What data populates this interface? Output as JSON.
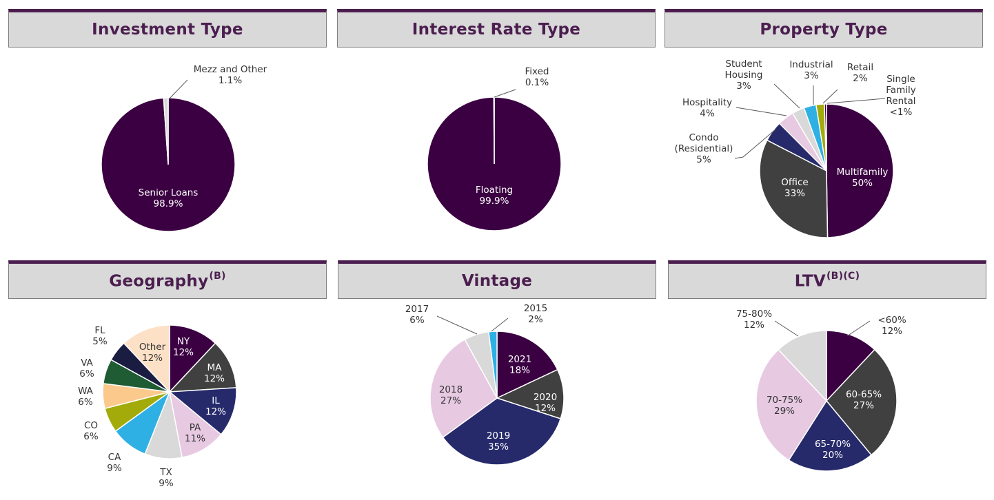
{
  "chart_data": [
    {
      "type": "pie",
      "title": "Investment Type",
      "categories": [
        "Senior Loans",
        "Mezz and Other"
      ],
      "values": [
        98.9,
        1.1
      ],
      "value_labels": [
        "98.9%",
        "1.1%"
      ],
      "colors": [
        "#3b0042",
        "#d9d9d9"
      ]
    },
    {
      "type": "pie",
      "title": "Interest Rate Type",
      "categories": [
        "Floating",
        "Fixed"
      ],
      "values": [
        99.9,
        0.1
      ],
      "value_labels": [
        "99.9%",
        "0.1%"
      ],
      "colors": [
        "#3b0042",
        "#d9d9d9"
      ]
    },
    {
      "type": "pie",
      "title": "Property Type",
      "categories": [
        "Multifamily",
        "Office",
        "Condo (Residential)",
        "Hospitality",
        "Student Housing",
        "Industrial",
        "Retail",
        "Single Family Rental"
      ],
      "values": [
        50,
        33,
        5,
        4,
        3,
        3,
        2,
        0.5
      ],
      "value_labels": [
        "50%",
        "33%",
        "5%",
        "4%",
        "3%",
        "3%",
        "2%",
        "<1%"
      ],
      "colors": [
        "#3b0042",
        "#404040",
        "#262a6b",
        "#e7c9e2",
        "#d9d9d9",
        "#2fb0e4",
        "#a3ab0b",
        "#3b0042"
      ]
    },
    {
      "type": "pie",
      "title": "Geography",
      "title_sup": "(B)",
      "categories": [
        "NY",
        "MA",
        "IL",
        "PA",
        "TX",
        "CA",
        "CO",
        "WA",
        "VA",
        "FL",
        "Other"
      ],
      "values": [
        12,
        12,
        12,
        11,
        9,
        9,
        6,
        6,
        6,
        5,
        12
      ],
      "value_labels": [
        "12%",
        "12%",
        "12%",
        "11%",
        "9%",
        "9%",
        "6%",
        "6%",
        "6%",
        "5%",
        "12%"
      ],
      "colors": [
        "#3b0042",
        "#404040",
        "#262a6b",
        "#e7c9e2",
        "#d9d9d9",
        "#2fb0e4",
        "#a3ab0b",
        "#fbc98b",
        "#1f5c34",
        "#1b1c42",
        "#fde1c6"
      ]
    },
    {
      "type": "pie",
      "title": "Vintage",
      "categories": [
        "2021",
        "2020",
        "2019",
        "2018",
        "2017",
        "2015"
      ],
      "values": [
        18,
        12,
        35,
        27,
        6,
        2
      ],
      "value_labels": [
        "18%",
        "12%",
        "35%",
        "27%",
        "6%",
        "2%"
      ],
      "colors": [
        "#3b0042",
        "#404040",
        "#262a6b",
        "#e7c9e2",
        "#d9d9d9",
        "#2fb0e4"
      ]
    },
    {
      "type": "pie",
      "title": "LTV",
      "title_sup": "(B)(C)",
      "categories": [
        "<60%",
        "60-65%",
        "65-70%",
        "70-75%",
        "75-80%"
      ],
      "values": [
        12,
        27,
        20,
        29,
        12
      ],
      "value_labels": [
        "12%",
        "27%",
        "20%",
        "29%",
        "12%"
      ],
      "colors": [
        "#3b0042",
        "#404040",
        "#262a6b",
        "#e7c9e2",
        "#d9d9d9"
      ]
    }
  ]
}
